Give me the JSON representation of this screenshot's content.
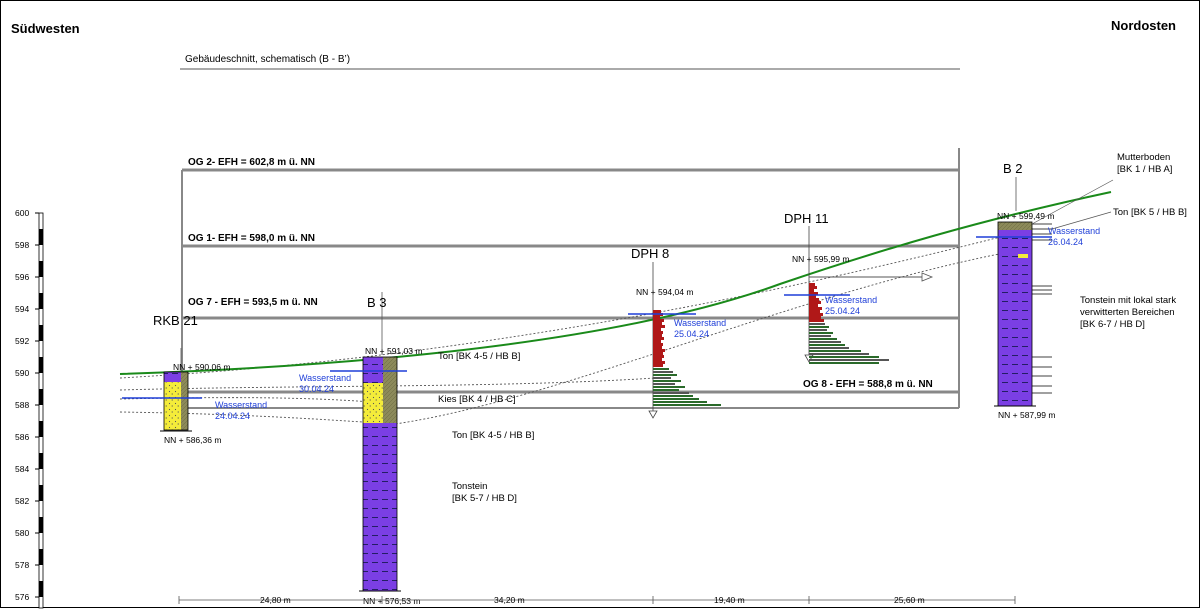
{
  "header": {
    "left": "Südwesten",
    "right": "Nordosten",
    "subtitle": "Gebäudeschnitt, schematisch (B - B’)"
  },
  "floors": [
    {
      "label": "OG 2- EFH = 602,8 m ü. NN",
      "value": 602.8
    },
    {
      "label": "OG 1- EFH = 598,0 m ü. NN",
      "value": 598.0
    },
    {
      "label": "OG 7 - EFH = 593,5 m ü. NN",
      "value": 593.5
    },
    {
      "label": "OG 8 - EFH = 588,8 m ü. NN",
      "value": 588.8
    }
  ],
  "scale": {
    "ticks": [
      "600",
      "598",
      "596",
      "594",
      "592",
      "590",
      "588",
      "586",
      "584",
      "582",
      "580",
      "578",
      "576"
    ]
  },
  "boreholes": {
    "rkb21": {
      "name": "RKB 21",
      "top": "NN + 590,06 m",
      "bottom": "NN + 586,36 m",
      "water_label": "Wasserstand",
      "water_date": "24.04.24"
    },
    "b3": {
      "name": "B 3",
      "top": "NN + 591,03 m",
      "bottom": "NN + 576,53 m",
      "water_label": "Wasserstand",
      "water_date": "30.04.24"
    },
    "dph8": {
      "name": "DPH 8",
      "top": "NN + 594,04 m",
      "water_label": "Wasserstand",
      "water_date": "25.04.24"
    },
    "dph11": {
      "name": "DPH 11",
      "top": "NN + 595,99 m",
      "water_label": "Wasserstand",
      "water_date": "25.04.24"
    },
    "b2": {
      "name": "B 2",
      "top": "NN + 599,49 m",
      "bottom": "NN + 587,99 m",
      "water_label": "Wasserstand",
      "water_date": "26.04.24"
    }
  },
  "layers": {
    "ton_upper": "Ton [BK 4-5 / HB B]",
    "kies": "Kies [BK 4 / HB C]",
    "ton_lower": "Ton [BK 4-5 / HB B]",
    "tonstein_line1": "Tonstein",
    "tonstein_line2": "[BK 5-7 / HB D]",
    "mutterboden_line1": "Mutterboden",
    "mutterboden_line2": "[BK 1 / HB A]",
    "ton_b2": "Ton [BK 5 / HB B]",
    "tonstein_b2_line1": "Tonstein mit lokal stark",
    "tonstein_b2_line2": "verwitterten Bereichen",
    "tonstein_b2_line3": "[BK 6-7 / HB D]"
  },
  "distances": [
    "24,80 m",
    "34,20 m",
    "19,40 m",
    "25,60 m"
  ],
  "colors": {
    "terrain": "#1a8a1a",
    "water": "#1f3fd8",
    "tonstein": "#7b3fe4",
    "kies": "#f4ec3a",
    "ton": "#8c8a5a",
    "dph_red": "#b01818",
    "dph_green": "#2a6a2a",
    "floor": "#888888"
  }
}
